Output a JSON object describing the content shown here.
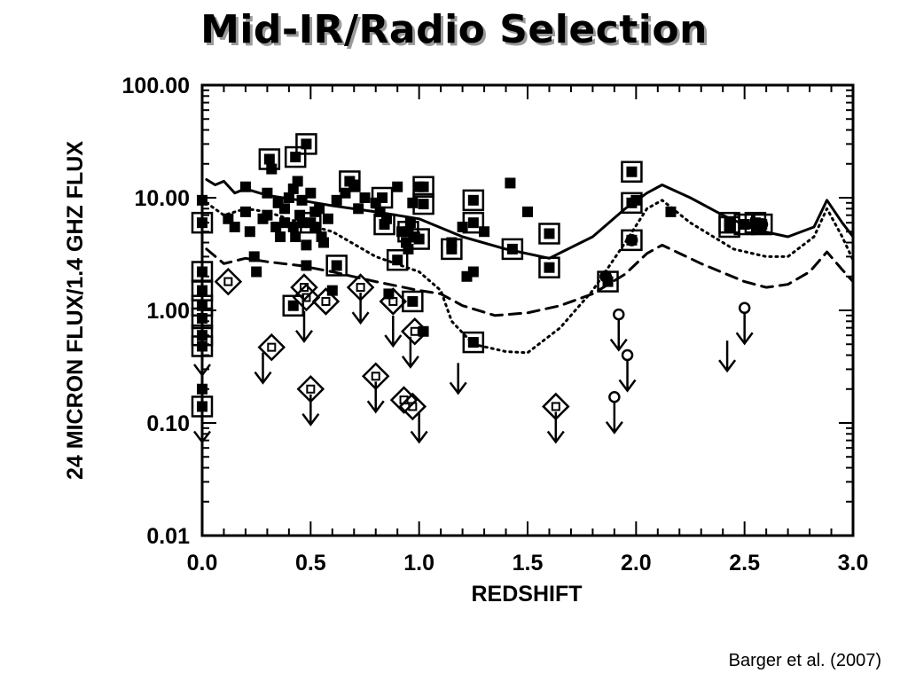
{
  "slide": {
    "title": "Mid-IR/Radio Selection",
    "citation": "Barger et al. (2007)"
  },
  "chart_data": {
    "type": "scatter",
    "title": "",
    "xlabel": "REDSHIFT",
    "ylabel": "24 MICRON FLUX/1.4 GHZ FLUX",
    "xlim": [
      0.0,
      3.0
    ],
    "ylim": [
      0.01,
      100.0
    ],
    "yscale": "log",
    "grid": false,
    "legend": "none",
    "x_ticks": [
      0.0,
      0.5,
      1.0,
      1.5,
      2.0,
      2.5,
      3.0
    ],
    "x_tick_labels": [
      "0.0",
      "0.5",
      "1.0",
      "1.5",
      "2.0",
      "2.5",
      "3.0"
    ],
    "y_ticks": [
      0.01,
      0.1,
      1.0,
      10.0,
      100.0
    ],
    "y_tick_labels": [
      "0.01",
      "0.10",
      "1.00",
      "10.00",
      "100.00"
    ],
    "colors": {
      "ink": "#000000",
      "background": "#ffffff",
      "title_shadow": "#9a9a9a"
    },
    "curves": [
      {
        "style": "solid",
        "points": [
          [
            0.02,
            14.5
          ],
          [
            0.06,
            13
          ],
          [
            0.1,
            14
          ],
          [
            0.15,
            11
          ],
          [
            0.2,
            12
          ],
          [
            0.3,
            10.5
          ],
          [
            0.45,
            9.5
          ],
          [
            0.6,
            8.5
          ],
          [
            0.8,
            7.5
          ],
          [
            1.0,
            6.5
          ],
          [
            1.2,
            4.5
          ],
          [
            1.4,
            3.5
          ],
          [
            1.6,
            2.9
          ],
          [
            1.8,
            4.5
          ],
          [
            1.95,
            8
          ],
          [
            2.05,
            11
          ],
          [
            2.12,
            13
          ],
          [
            2.25,
            10
          ],
          [
            2.4,
            7
          ],
          [
            2.55,
            5.2
          ],
          [
            2.7,
            4.5
          ],
          [
            2.82,
            5.5
          ],
          [
            2.88,
            9.5
          ],
          [
            2.95,
            6
          ],
          [
            3.0,
            4.5
          ]
        ]
      },
      {
        "style": "dotted",
        "points": [
          [
            0.02,
            9
          ],
          [
            0.1,
            7
          ],
          [
            0.2,
            8
          ],
          [
            0.3,
            7.5
          ],
          [
            0.45,
            6
          ],
          [
            0.6,
            5
          ],
          [
            0.8,
            3
          ],
          [
            1.0,
            2.2
          ],
          [
            1.1,
            1.5
          ],
          [
            1.15,
            0.8
          ],
          [
            1.25,
            0.5
          ],
          [
            1.4,
            0.43
          ],
          [
            1.5,
            0.42
          ],
          [
            1.65,
            0.7
          ],
          [
            1.8,
            1.5
          ],
          [
            1.95,
            4
          ],
          [
            2.05,
            8
          ],
          [
            2.12,
            9.5
          ],
          [
            2.25,
            6
          ],
          [
            2.45,
            3.5
          ],
          [
            2.6,
            3
          ],
          [
            2.7,
            3
          ],
          [
            2.82,
            4.5
          ],
          [
            2.88,
            8
          ],
          [
            2.95,
            4.5
          ],
          [
            3.0,
            2.8
          ]
        ]
      },
      {
        "style": "dashed",
        "points": [
          [
            0.02,
            3.5
          ],
          [
            0.1,
            2.6
          ],
          [
            0.2,
            2.9
          ],
          [
            0.3,
            2.7
          ],
          [
            0.45,
            2.5
          ],
          [
            0.6,
            2.2
          ],
          [
            0.8,
            1.8
          ],
          [
            1.0,
            1.5
          ],
          [
            1.1,
            1.4
          ],
          [
            1.2,
            1.1
          ],
          [
            1.35,
            0.9
          ],
          [
            1.5,
            0.95
          ],
          [
            1.65,
            1.1
          ],
          [
            1.8,
            1.4
          ],
          [
            1.95,
            2.1
          ],
          [
            2.05,
            3.2
          ],
          [
            2.12,
            3.8
          ],
          [
            2.3,
            2.6
          ],
          [
            2.5,
            1.8
          ],
          [
            2.6,
            1.6
          ],
          [
            2.7,
            1.7
          ],
          [
            2.8,
            2.2
          ],
          [
            2.88,
            3.3
          ],
          [
            2.95,
            2.3
          ],
          [
            3.0,
            1.8
          ]
        ]
      }
    ],
    "series": [
      {
        "marker": "filled-square",
        "points": [
          [
            0.0,
            9.5
          ],
          [
            0.12,
            6.5
          ],
          [
            0.15,
            5.5
          ],
          [
            0.2,
            12.5
          ],
          [
            0.2,
            7.5
          ],
          [
            0.22,
            5
          ],
          [
            0.24,
            3
          ],
          [
            0.25,
            2.2
          ],
          [
            0.28,
            6.5
          ],
          [
            0.3,
            11
          ],
          [
            0.3,
            7
          ],
          [
            0.32,
            18
          ],
          [
            0.34,
            5.5
          ],
          [
            0.35,
            9
          ],
          [
            0.36,
            4.5
          ],
          [
            0.38,
            6
          ],
          [
            0.38,
            8
          ],
          [
            0.4,
            10
          ],
          [
            0.42,
            12
          ],
          [
            0.42,
            5.5
          ],
          [
            0.43,
            4.5
          ],
          [
            0.44,
            14
          ],
          [
            0.45,
            7
          ],
          [
            0.46,
            9.5
          ],
          [
            0.46,
            6
          ],
          [
            0.48,
            3.8
          ],
          [
            0.48,
            2.5
          ],
          [
            0.5,
            11
          ],
          [
            0.52,
            7.5
          ],
          [
            0.52,
            5.5
          ],
          [
            0.54,
            8
          ],
          [
            0.55,
            4.5
          ],
          [
            0.56,
            4
          ],
          [
            0.58,
            6.5
          ],
          [
            0.6,
            1.5
          ],
          [
            0.62,
            9.5
          ],
          [
            0.66,
            11
          ],
          [
            0.7,
            13
          ],
          [
            0.72,
            8
          ],
          [
            0.75,
            10
          ],
          [
            0.8,
            9
          ],
          [
            0.82,
            7.5
          ],
          [
            0.85,
            6.5
          ],
          [
            0.86,
            1.4
          ],
          [
            0.9,
            12.5
          ],
          [
            0.92,
            5
          ],
          [
            0.94,
            4
          ],
          [
            0.95,
            3.5
          ],
          [
            0.96,
            6
          ],
          [
            0.97,
            9
          ],
          [
            0.98,
            4.5
          ],
          [
            1.0,
            12.5
          ],
          [
            1.02,
            0.65
          ],
          [
            1.15,
            4
          ],
          [
            1.2,
            5.5
          ],
          [
            1.22,
            2
          ],
          [
            1.25,
            2.2
          ],
          [
            1.3,
            5
          ],
          [
            1.42,
            13.5
          ],
          [
            1.5,
            7.5
          ],
          [
            2.0,
            9.5
          ],
          [
            2.16,
            7.5
          ],
          [
            0.0,
            0.2
          ]
        ]
      },
      {
        "marker": "square-in-square",
        "points": [
          [
            0.0,
            6
          ],
          [
            0.0,
            2.2
          ],
          [
            0.0,
            1.5
          ],
          [
            0.0,
            1.1
          ],
          [
            0.0,
            0.85
          ],
          [
            0.0,
            0.6
          ],
          [
            0.0,
            0.48
          ],
          [
            0.0,
            0.14
          ],
          [
            0.31,
            22
          ],
          [
            0.43,
            23
          ],
          [
            0.48,
            30
          ],
          [
            0.5,
            6
          ],
          [
            0.62,
            2.5
          ],
          [
            0.68,
            14
          ],
          [
            0.83,
            10
          ],
          [
            0.84,
            5.8
          ],
          [
            0.9,
            2.8
          ],
          [
            0.95,
            5
          ],
          [
            0.97,
            1.2
          ],
          [
            1.0,
            4.3
          ],
          [
            1.02,
            12.5
          ],
          [
            1.02,
            8.8
          ],
          [
            1.15,
            3.5
          ],
          [
            1.25,
            9.5
          ],
          [
            1.25,
            6
          ],
          [
            1.25,
            0.52
          ],
          [
            1.43,
            3.5
          ],
          [
            1.6,
            4.8
          ],
          [
            1.6,
            2.4
          ],
          [
            1.98,
            17
          ],
          [
            1.98,
            4.2
          ],
          [
            1.98,
            9
          ],
          [
            1.87,
            1.8
          ],
          [
            2.43,
            6
          ],
          [
            2.43,
            5.5
          ],
          [
            2.5,
            5.8
          ],
          [
            2.55,
            6
          ],
          [
            2.58,
            5.8
          ],
          [
            0.42,
            1.1
          ]
        ]
      },
      {
        "marker": "diamond",
        "points": [
          [
            0.12,
            1.8
          ],
          [
            0.32,
            0.47
          ],
          [
            0.47,
            1.6
          ],
          [
            0.48,
            1.3
          ],
          [
            0.5,
            0.2
          ],
          [
            0.57,
            1.2
          ],
          [
            0.73,
            1.6
          ],
          [
            0.8,
            0.26
          ],
          [
            0.88,
            1.2
          ],
          [
            0.93,
            0.16
          ],
          [
            0.97,
            0.14
          ],
          [
            0.98,
            0.65
          ],
          [
            1.63,
            0.14
          ]
        ]
      },
      {
        "marker": "filled-circle",
        "points": [
          [
            1.98,
            4.2
          ],
          [
            1.86,
            2
          ],
          [
            2.55,
            5.8
          ],
          [
            2.58,
            5.8
          ]
        ]
      },
      {
        "marker": "open-circle",
        "points": [
          [
            1.92,
            0.92
          ],
          [
            1.96,
            0.4
          ],
          [
            1.9,
            0.17
          ],
          [
            2.5,
            1.05
          ]
        ]
      },
      {
        "marker": "upper-limit-arrow",
        "points": [
          [
            0.0,
            0.55
          ],
          [
            0.0,
            0.14
          ],
          [
            0.28,
            0.47
          ],
          [
            0.47,
            1.1
          ],
          [
            0.5,
            0.2
          ],
          [
            0.73,
            1.6
          ],
          [
            0.8,
            0.26
          ],
          [
            0.88,
            1.0
          ],
          [
            0.96,
            0.65
          ],
          [
            1.0,
            0.14
          ],
          [
            1.18,
            0.38
          ],
          [
            1.63,
            0.14
          ],
          [
            1.92,
            0.92
          ],
          [
            1.96,
            0.4
          ],
          [
            1.9,
            0.17
          ],
          [
            2.42,
            0.6
          ],
          [
            2.5,
            1.05
          ]
        ]
      }
    ]
  }
}
